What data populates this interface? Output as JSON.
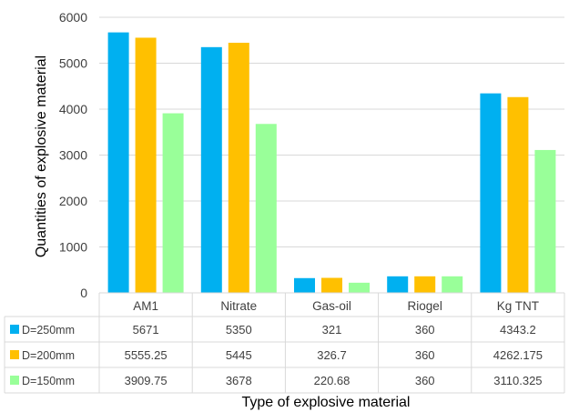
{
  "chart_data": {
    "type": "bar",
    "categories": [
      "AM1",
      "Nitrate",
      "Gas-oil",
      "Riogel",
      "Kg TNT"
    ],
    "series": [
      {
        "name": "D=250mm",
        "color": "#00b0f0",
        "values": [
          5671,
          5350,
          321,
          360,
          4343.2
        ],
        "labels": [
          "5671",
          "5350",
          "321",
          "360",
          "4343.2"
        ]
      },
      {
        "name": "D=200mm",
        "color": "#ffc000",
        "values": [
          5555.25,
          5445,
          326.7,
          360,
          4262.175
        ],
        "labels": [
          "5555.25",
          "5445",
          "326.7",
          "360",
          "4262.175"
        ]
      },
      {
        "name": "D=150mm",
        "color": "#99ff99",
        "values": [
          3909.75,
          3678,
          220.68,
          360,
          3110.325
        ],
        "labels": [
          "3909.75",
          "3678",
          "220.68",
          "360",
          "3110.325"
        ]
      }
    ],
    "xlabel": "Type of explosive material",
    "ylabel": "Quantities of explosive material",
    "ylim": [
      0,
      6000
    ],
    "yticks": [
      0,
      1000,
      2000,
      3000,
      4000,
      5000,
      6000
    ],
    "grid": true,
    "legend": "data-table"
  }
}
